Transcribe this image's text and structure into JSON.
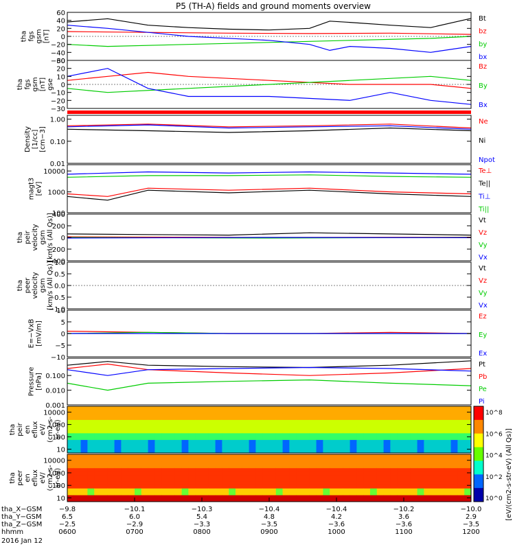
{
  "title": "P5 (TH-A) fields and ground moments overview",
  "date_label": "2016 Jan 12",
  "colors": {
    "black": "#000000",
    "red": "#ff0000",
    "green": "#00cc00",
    "blue": "#0000ff",
    "lightgreen": "#66ff00"
  },
  "chart_data": [
    {
      "type": "line",
      "id": "fgs",
      "ylabel": [
        "tha",
        "fgs",
        "gsm",
        "[nT]"
      ],
      "ylim": [
        -60,
        60
      ],
      "ticks": [
        60,
        40,
        20,
        0,
        -20,
        -40,
        -60
      ],
      "tick_labels": [
        "60",
        "40",
        "20",
        "0",
        "−20",
        "−40",
        "−60"
      ],
      "series": [
        {
          "name": "Bt",
          "color": "#000000",
          "x": [
            0,
            0.1,
            0.2,
            0.3,
            0.4,
            0.5,
            0.6,
            0.65,
            0.7,
            0.8,
            0.9,
            1.0
          ],
          "values": [
            36,
            44,
            28,
            22,
            18,
            16,
            20,
            38,
            35,
            28,
            22,
            45
          ]
        },
        {
          "name": "bz",
          "color": "#ff0000",
          "x": [
            0,
            0.2,
            0.4,
            0.6,
            0.8,
            1.0
          ],
          "values": [
            12,
            10,
            8,
            7,
            8,
            5
          ]
        },
        {
          "name": "by",
          "color": "#00cc00",
          "x": [
            0,
            0.1,
            0.3,
            0.5,
            0.7,
            0.9,
            1.0
          ],
          "values": [
            -20,
            -25,
            -20,
            -15,
            -10,
            -5,
            0
          ]
        },
        {
          "name": "bx",
          "color": "#0000ff",
          "x": [
            0,
            0.1,
            0.3,
            0.5,
            0.6,
            0.65,
            0.7,
            0.8,
            0.9,
            1.0
          ],
          "values": [
            28,
            20,
            0,
            -10,
            -20,
            -35,
            -25,
            -30,
            -40,
            -25
          ]
        }
      ]
    },
    {
      "type": "line",
      "id": "fgs_dsl",
      "ylabel": [
        "tha",
        "fgs",
        "gsm",
        "[nT]",
        "gse"
      ],
      "ylim": [
        -30,
        30
      ],
      "ticks": [
        30,
        20,
        10,
        0,
        -10,
        -20,
        -30
      ],
      "tick_labels": [
        "30",
        "20",
        "10",
        "0",
        "−10",
        "−20",
        "−30"
      ],
      "series": [
        {
          "name": "Bz",
          "color": "#ff0000",
          "x": [
            0,
            0.1,
            0.2,
            0.3,
            0.5,
            0.7,
            0.9,
            1.0
          ],
          "values": [
            5,
            10,
            15,
            10,
            5,
            0,
            0,
            -5
          ]
        },
        {
          "name": "By",
          "color": "#00cc00",
          "x": [
            0,
            0.1,
            0.3,
            0.5,
            0.7,
            0.9,
            1.0
          ],
          "values": [
            -5,
            -10,
            -5,
            0,
            5,
            10,
            5
          ]
        },
        {
          "name": "Bx",
          "color": "#0000ff",
          "x": [
            0,
            0.1,
            0.2,
            0.3,
            0.5,
            0.7,
            0.8,
            0.9,
            1.0
          ],
          "values": [
            10,
            20,
            -5,
            -15,
            -15,
            -20,
            -10,
            -20,
            -25
          ]
        }
      ]
    },
    {
      "type": "line",
      "id": "density",
      "ylabel": [
        "Density",
        "[1/cc]",
        "[cm−3]"
      ],
      "scale": "log",
      "ylim": [
        0.01,
        1.5
      ],
      "ticks": [
        1.0,
        0.1,
        0.01
      ],
      "tick_labels": [
        "1.00",
        "0.10",
        "0.01"
      ],
      "series": [
        {
          "name": "Ne",
          "color": "#ff0000",
          "x": [
            0,
            0.2,
            0.4,
            0.6,
            0.8,
            1.0
          ],
          "values": [
            0.5,
            0.6,
            0.45,
            0.5,
            0.6,
            0.4
          ]
        },
        {
          "name": "Ni",
          "color": "#000000",
          "x": [
            0,
            0.2,
            0.4,
            0.6,
            0.8,
            1.0
          ],
          "values": [
            0.35,
            0.3,
            0.25,
            0.3,
            0.4,
            0.3
          ]
        },
        {
          "name": "Npot",
          "color": "#0000ff",
          "x": [
            0,
            0.2,
            0.4,
            0.6,
            0.8,
            1.0
          ],
          "values": [
            0.45,
            0.55,
            0.4,
            0.45,
            0.5,
            0.35
          ]
        }
      ]
    },
    {
      "type": "line",
      "id": "temp",
      "ylabel": [
        "magt3",
        "[eV]"
      ],
      "scale": "log",
      "ylim": [
        100,
        20000
      ],
      "ticks": [
        10000,
        1000,
        100
      ],
      "tick_labels": [
        "10000",
        "1000",
        "100"
      ],
      "series": [
        {
          "name": "Te⊥",
          "color": "#ff0000",
          "x": [
            0,
            0.1,
            0.2,
            0.4,
            0.6,
            0.8,
            1.0
          ],
          "values": [
            800,
            600,
            1500,
            1200,
            1500,
            1000,
            800
          ]
        },
        {
          "name": "Te||",
          "color": "#000000",
          "x": [
            0,
            0.1,
            0.2,
            0.4,
            0.6,
            0.8,
            1.0
          ],
          "values": [
            600,
            400,
            1200,
            900,
            1200,
            800,
            600
          ]
        },
        {
          "name": "Ti⊥",
          "color": "#0000ff",
          "x": [
            0,
            0.2,
            0.4,
            0.6,
            0.8,
            1.0
          ],
          "values": [
            7000,
            9000,
            8000,
            9000,
            8000,
            7000
          ]
        },
        {
          "name": "Ti||",
          "color": "#00cc00",
          "x": [
            0,
            0.2,
            0.4,
            0.6,
            0.8,
            1.0
          ],
          "values": [
            5000,
            6000,
            6000,
            6500,
            5500,
            5000
          ]
        }
      ]
    },
    {
      "type": "line",
      "id": "peir_v",
      "ylabel": [
        "tha",
        "peir",
        "velocity",
        "gsm",
        "[km/s (All Qs)]"
      ],
      "ylim": [
        -400,
        400
      ],
      "ticks": [
        400,
        200,
        0,
        -200,
        -400
      ],
      "tick_labels": [
        "400",
        "200",
        "0",
        "−200",
        "−400"
      ],
      "series": [
        {
          "name": "Vt",
          "color": "#000000",
          "x": [
            0,
            0.2,
            0.4,
            0.6,
            0.8,
            1.0
          ],
          "values": [
            60,
            50,
            40,
            80,
            60,
            40
          ]
        },
        {
          "name": "Vz",
          "color": "#ff0000",
          "x": [
            0,
            0.5,
            1.0
          ],
          "values": [
            10,
            0,
            5
          ]
        },
        {
          "name": "Vy",
          "color": "#00cc00",
          "x": [
            0,
            0.5,
            1.0
          ],
          "values": [
            0,
            -10,
            0
          ]
        },
        {
          "name": "Vx",
          "color": "#0000ff",
          "x": [
            0,
            0.5,
            1.0
          ],
          "values": [
            -10,
            0,
            -5
          ]
        }
      ]
    },
    {
      "type": "line",
      "id": "peer_v",
      "ylabel": [
        "tha",
        "peer",
        "velocity",
        "gsm",
        "[km/s (All Qs)]"
      ],
      "ylim": [
        -1,
        1
      ],
      "ticks": [
        1.0,
        0.5,
        0.0,
        -0.5,
        -1.0
      ],
      "tick_labels": [
        "1.0",
        "0.5",
        "0.0",
        "−0.5",
        "−1.0"
      ],
      "series": [
        {
          "name": "Vt",
          "color": "#000000",
          "x": [],
          "values": []
        },
        {
          "name": "Vz",
          "color": "#ff0000",
          "x": [],
          "values": []
        },
        {
          "name": "Vy",
          "color": "#00cc00",
          "x": [],
          "values": []
        },
        {
          "name": "Vx",
          "color": "#0000ff",
          "x": [],
          "values": []
        }
      ]
    },
    {
      "type": "line",
      "id": "efield",
      "ylabel": [
        "E=−VxB",
        "[mV/m]"
      ],
      "ylim": [
        -10,
        10
      ],
      "ticks": [
        10,
        5,
        0,
        -5,
        -10
      ],
      "tick_labels": [
        "10",
        "5",
        "0",
        "−5",
        "−10"
      ],
      "series": [
        {
          "name": "Ez",
          "color": "#ff0000",
          "x": [
            0,
            0.2,
            0.4,
            0.6,
            0.8,
            1.0
          ],
          "values": [
            1,
            0.5,
            0,
            0,
            0.5,
            0
          ]
        },
        {
          "name": "Ey",
          "color": "#00cc00",
          "x": [
            0,
            0.2,
            0.4,
            0.6,
            0.8,
            1.0
          ],
          "values": [
            0,
            0.5,
            0,
            0,
            0,
            0
          ]
        },
        {
          "name": "Ex",
          "color": "#0000ff",
          "x": [
            0,
            0.5,
            1.0
          ],
          "values": [
            0,
            0,
            0
          ]
        }
      ]
    },
    {
      "type": "line",
      "id": "pressure",
      "ylabel": [
        "Pressure",
        "[nPa]"
      ],
      "scale": "log",
      "ylim": [
        0.001,
        1.5
      ],
      "ticks": [
        0.1,
        0.01,
        0.001
      ],
      "tick_labels": [
        "0.100",
        "0.010",
        "0.001"
      ],
      "series": [
        {
          "name": "Pt",
          "color": "#000000",
          "x": [
            0,
            0.1,
            0.2,
            0.4,
            0.6,
            0.8,
            1.0
          ],
          "values": [
            0.5,
            0.9,
            0.5,
            0.4,
            0.35,
            0.5,
            1.0
          ]
        },
        {
          "name": "Pb",
          "color": "#ff0000",
          "x": [
            0,
            0.1,
            0.2,
            0.4,
            0.6,
            0.8,
            1.0
          ],
          "values": [
            0.3,
            0.6,
            0.25,
            0.15,
            0.1,
            0.15,
            0.3
          ]
        },
        {
          "name": "Pe",
          "color": "#00cc00",
          "x": [
            0,
            0.1,
            0.2,
            0.4,
            0.6,
            0.8,
            1.0
          ],
          "values": [
            0.03,
            0.01,
            0.03,
            0.04,
            0.05,
            0.03,
            0.02
          ]
        },
        {
          "name": "Pi",
          "color": "#0000ff",
          "x": [
            0,
            0.1,
            0.2,
            0.4,
            0.6,
            0.8,
            1.0
          ],
          "values": [
            0.25,
            0.1,
            0.25,
            0.3,
            0.35,
            0.3,
            0.2
          ]
        }
      ]
    },
    {
      "type": "heatmap",
      "id": "peir_en",
      "ylabel": [
        "tha",
        "peir",
        "en",
        "eflux",
        "eV/",
        "(cm2-s-",
        "sr-eV)"
      ],
      "scale": "log",
      "ylim": [
        5,
        30000
      ],
      "ticks": [
        10000,
        1000,
        100,
        10
      ],
      "tick_labels": [
        "10000",
        "1000",
        "100",
        "10"
      ]
    },
    {
      "type": "heatmap",
      "id": "peer_en",
      "ylabel": [
        "tha",
        "peer",
        "en",
        "eflux",
        "eV/",
        "(cm2-s-",
        "sr-eV)"
      ],
      "scale": "log",
      "ylim": [
        5,
        30000
      ],
      "ticks": [
        10000,
        1000,
        100,
        10
      ],
      "tick_labels": [
        "10000",
        "1000",
        "100",
        "10"
      ]
    }
  ],
  "colorbar": {
    "label": "[eV/(cm2-s-str-eV) (All Qs)]",
    "tick_labels": [
      "10^8",
      "10^6",
      "10^4",
      "10^2",
      "10^0"
    ]
  },
  "x_axis": {
    "rows": [
      {
        "label": "tha_X−GSM",
        "values": [
          "−9.8",
          "−10.1",
          "−10.3",
          "−10.4",
          "−10.4",
          "−10.2",
          "−10.0"
        ]
      },
      {
        "label": "tha_Y−GSM",
        "values": [
          "6.5",
          "6.0",
          "5.4",
          "4.8",
          "4.2",
          "3.6",
          "2.9"
        ]
      },
      {
        "label": "tha_Z−GSM",
        "values": [
          "−2.5",
          "−2.9",
          "−3.3",
          "−3.5",
          "−3.6",
          "−3.6",
          "−3.5"
        ]
      },
      {
        "label": "hhmm",
        "values": [
          "0600",
          "0700",
          "0800",
          "0900",
          "1000",
          "1100",
          "1200"
        ]
      }
    ]
  }
}
